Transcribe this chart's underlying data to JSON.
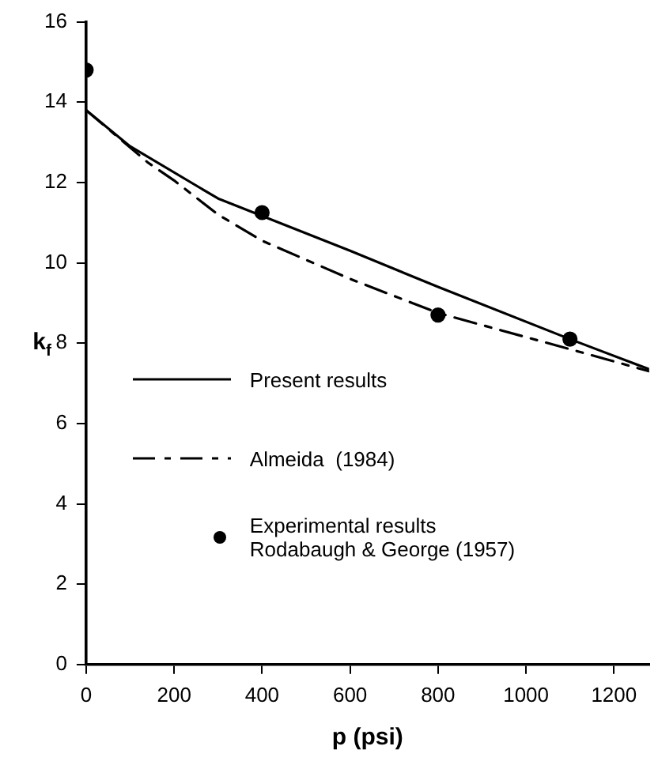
{
  "chart_data": {
    "type": "line",
    "xlabel": "p (psi)",
    "ylabel": "k$_{f}$",
    "xlim": [
      0,
      1280
    ],
    "xticks": [
      0,
      200,
      400,
      600,
      800,
      1000,
      1200
    ],
    "ylim": [
      0,
      16
    ],
    "yticks": [
      0,
      2,
      4,
      6,
      8,
      10,
      12,
      14,
      16
    ],
    "grid": false,
    "legend": "left",
    "series": [
      {
        "name": "Present results",
        "type": "line",
        "color": "#000000",
        "line_style": "solid",
        "marker": "none",
        "x": [
          0,
          100,
          300,
          600,
          800,
          1100,
          1280
        ],
        "values": [
          13.8,
          12.9,
          11.6,
          10.3,
          9.4,
          8.1,
          7.35
        ]
      },
      {
        "name": "Almeida  (1984)",
        "type": "line",
        "color": "#000000",
        "line_style": "dashed",
        "marker": "none",
        "x": [
          0,
          140,
          200,
          300,
          400,
          600,
          800,
          1100,
          1280
        ],
        "values": [
          13.8,
          12.5,
          12.05,
          11.2,
          10.55,
          9.6,
          8.75,
          7.85,
          7.3
        ]
      },
      {
        "name": "Experimental results\nRodabaugh & George (1957)",
        "type": "scatter",
        "color": "#000000",
        "marker": "circle",
        "x": [
          0,
          400,
          800,
          1100
        ],
        "values": [
          14.8,
          11.25,
          8.7,
          8.1
        ]
      }
    ]
  }
}
